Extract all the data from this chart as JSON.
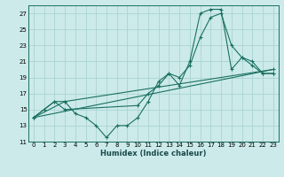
{
  "xlabel": "Humidex (Indice chaleur)",
  "bg_color": "#cceaea",
  "grid_color": "#aad4d4",
  "line_color": "#1a7060",
  "xlim": [
    -0.5,
    23.5
  ],
  "ylim": [
    11,
    28
  ],
  "yticks": [
    11,
    13,
    15,
    17,
    19,
    21,
    23,
    25,
    27
  ],
  "xticks": [
    0,
    1,
    2,
    3,
    4,
    5,
    6,
    7,
    8,
    9,
    10,
    11,
    12,
    13,
    14,
    15,
    16,
    17,
    18,
    19,
    20,
    21,
    22,
    23
  ],
  "line1_x": [
    0,
    1,
    2,
    3,
    4,
    5,
    6,
    7,
    8,
    9,
    10,
    11,
    12,
    13,
    14,
    15,
    16,
    17,
    18,
    19,
    20,
    21,
    22,
    23
  ],
  "line1_y": [
    14,
    15,
    16,
    16,
    14.5,
    14,
    13,
    11.5,
    13,
    13,
    14,
    16,
    18.5,
    19.5,
    18,
    21,
    27,
    27.5,
    27.5,
    20,
    21.5,
    20.5,
    19.5,
    19.5
  ],
  "line2_x": [
    0,
    2,
    3,
    10,
    11,
    12,
    13,
    14,
    15,
    16,
    17,
    18,
    19,
    20,
    21,
    22,
    23
  ],
  "line2_y": [
    14,
    16,
    15,
    15.5,
    17,
    18,
    19.5,
    19,
    20.5,
    24,
    26.5,
    27,
    23,
    21.5,
    21,
    19.5,
    19.5
  ],
  "line3_x": [
    0,
    3,
    23
  ],
  "line3_y": [
    14,
    16,
    20
  ],
  "line4_x": [
    0,
    23
  ],
  "line4_y": [
    14,
    20
  ]
}
